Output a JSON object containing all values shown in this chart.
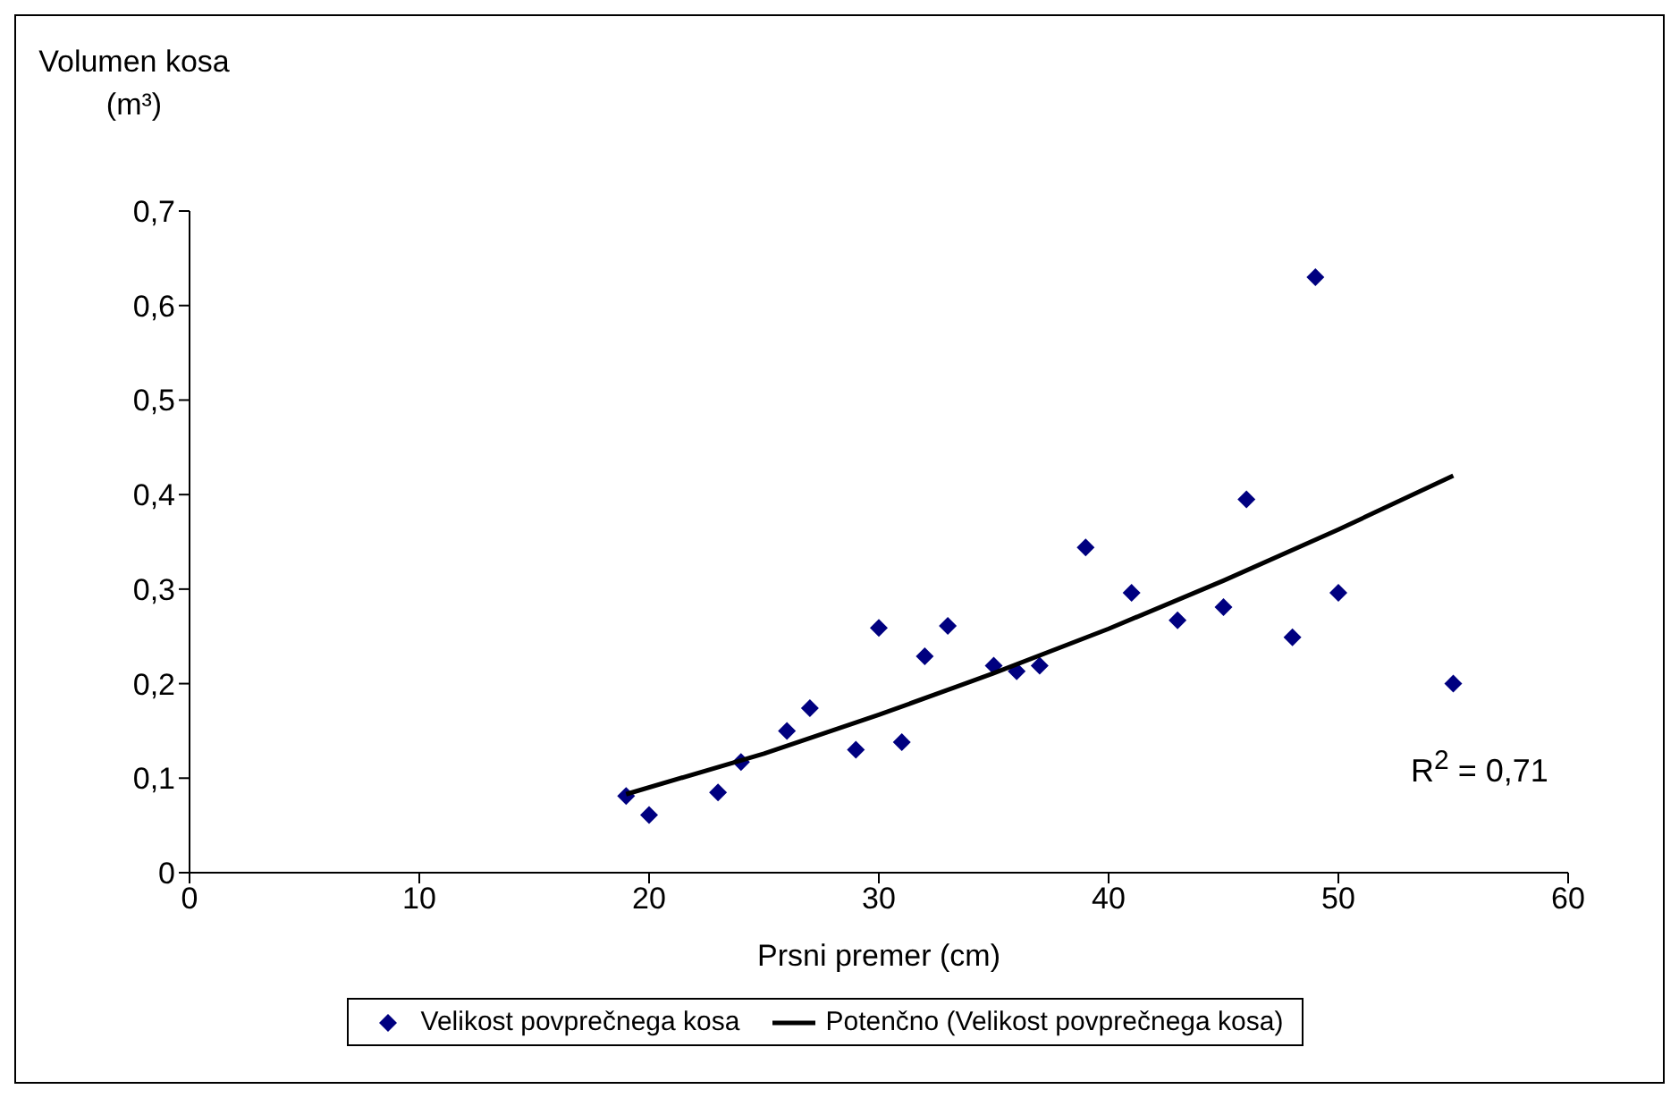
{
  "chart_data": {
    "type": "scatter",
    "xlabel": "Prsni premer (cm)",
    "ylabel": "Volumen kosa (m³)",
    "annotations": [
      "R$^{2}$ = 0,71"
    ],
    "xlim": [
      0,
      60
    ],
    "xticks": [
      0,
      10,
      20,
      30,
      40,
      50,
      60
    ],
    "ylim": [
      0,
      0.7
    ],
    "yticks": [
      {
        "value": 0,
        "label": "0"
      },
      {
        "value": 0.1,
        "label": "0,1"
      },
      {
        "value": 0.2,
        "label": "0,2"
      },
      {
        "value": 0.3,
        "label": "0,3"
      },
      {
        "value": 0.4,
        "label": "0,4"
      },
      {
        "value": 0.5,
        "label": "0,5"
      },
      {
        "value": 0.6,
        "label": "0,6"
      },
      {
        "value": 0.7,
        "label": "0,7"
      }
    ],
    "legend": "bottom",
    "marker": "diamond",
    "series": [
      {
        "name": "Velikost povprečnega kosa",
        "color": "#000080",
        "x": [
          19,
          20,
          23,
          24,
          26,
          27,
          29,
          30,
          31,
          32,
          33,
          35,
          36,
          37,
          39,
          41,
          43,
          45,
          46,
          48,
          49,
          50,
          55
        ],
        "values": [
          0.081,
          0.061,
          0.085,
          0.117,
          0.15,
          0.174,
          0.13,
          0.259,
          0.138,
          0.229,
          0.261,
          0.219,
          0.213,
          0.219,
          0.344,
          0.296,
          0.267,
          0.281,
          0.395,
          0.249,
          0.63,
          0.296,
          0.2
        ]
      },
      {
        "type": "line",
        "name": "Potenčno (Velikost povprečnega kosa)",
        "color": "#000000",
        "line_style": "solid",
        "marker": "none",
        "x": [
          19,
          25,
          30,
          35,
          40,
          45,
          50,
          55
        ],
        "values": [
          0.083,
          0.126,
          0.167,
          0.211,
          0.258,
          0.309,
          0.363,
          0.42
        ]
      }
    ]
  }
}
